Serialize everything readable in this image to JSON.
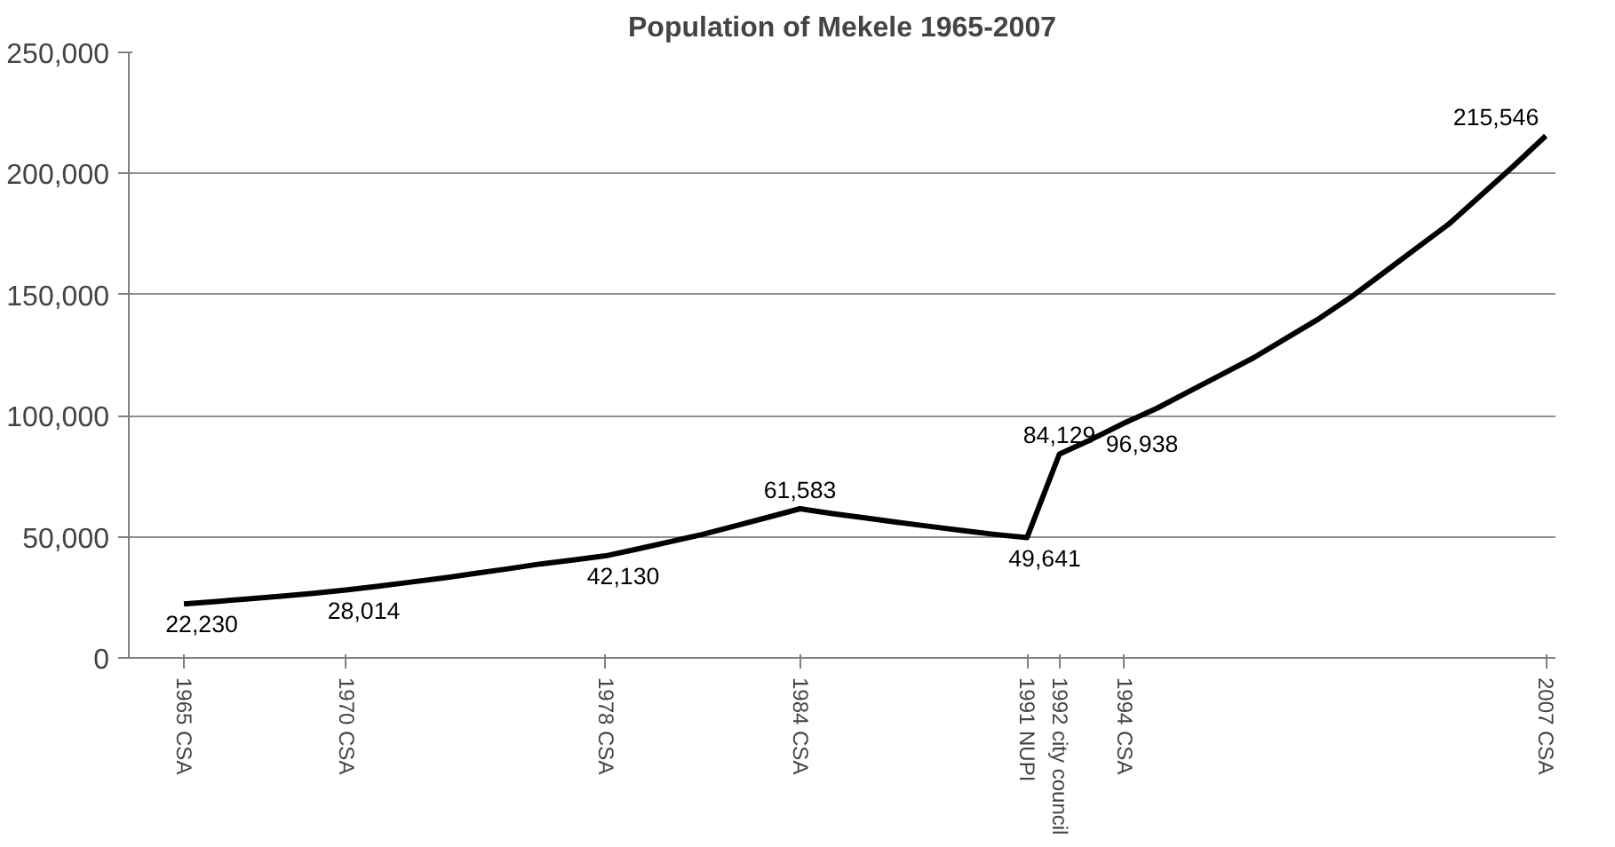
{
  "chart_data": {
    "type": "line",
    "title": "Population of Mekele 1965-2007",
    "x": [
      1965,
      1966,
      1967,
      1968,
      1969,
      1970,
      1971,
      1972,
      1973,
      1974,
      1975,
      1976,
      1977,
      1978,
      1979,
      1980,
      1981,
      1982,
      1983,
      1984,
      1985,
      1986,
      1987,
      1988,
      1989,
      1990,
      1991,
      1992,
      1993,
      1994,
      1995,
      1996,
      1997,
      1998,
      1999,
      2000,
      2001,
      2002,
      2003,
      2004,
      2005,
      2006,
      2007
    ],
    "series": [
      {
        "color": "#000000",
        "values": [
          22230,
          23300,
          24400,
          25500,
          26700,
          28014,
          29600,
          31300,
          33000,
          34900,
          36800,
          38800,
          40400,
          42130,
          45000,
          48000,
          51000,
          54500,
          58000,
          61583,
          59600,
          57800,
          56000,
          54300,
          52600,
          51000,
          49641,
          84129,
          90300,
          96938,
          103000,
          110000,
          117000,
          124000,
          132000,
          140000,
          149000,
          159000,
          169000,
          179000,
          191000,
          203000,
          215546
        ],
        "value_labels": [
          "22,230",
          null,
          null,
          null,
          null,
          "28,014",
          null,
          null,
          null,
          null,
          null,
          null,
          null,
          "42,130",
          null,
          null,
          null,
          null,
          null,
          "61,583",
          null,
          null,
          null,
          null,
          null,
          null,
          "49,641",
          "84,129",
          null,
          "96,938",
          null,
          null,
          null,
          null,
          null,
          null,
          null,
          null,
          null,
          null,
          null,
          null,
          "215,546"
        ]
      }
    ],
    "xlim": [
      1963.3,
      2007.3
    ],
    "xticks": [
      {
        "value": 1965,
        "label": "1965 CSA"
      },
      {
        "value": 1970,
        "label": "1970 CSA"
      },
      {
        "value": 1978,
        "label": "1978 CSA"
      },
      {
        "value": 1984,
        "label": "1984 CSA"
      },
      {
        "value": 1991,
        "label": "1991 NUPI"
      },
      {
        "value": 1992,
        "label": "1992 city council"
      },
      {
        "value": 1994,
        "label": "1994 CSA"
      },
      {
        "value": 2007,
        "label": "2007 CSA"
      }
    ],
    "ylim": [
      0,
      250000
    ],
    "yticks": [
      {
        "value": 0,
        "label": "0"
      },
      {
        "value": 50000,
        "label": "50,000"
      },
      {
        "value": 100000,
        "label": "100,000"
      },
      {
        "value": 150000,
        "label": "150,000"
      },
      {
        "value": 200000,
        "label": "200,000"
      },
      {
        "value": 250000,
        "label": "250,000"
      }
    ],
    "grid": "y",
    "marker": "none",
    "line_style": "solid"
  }
}
